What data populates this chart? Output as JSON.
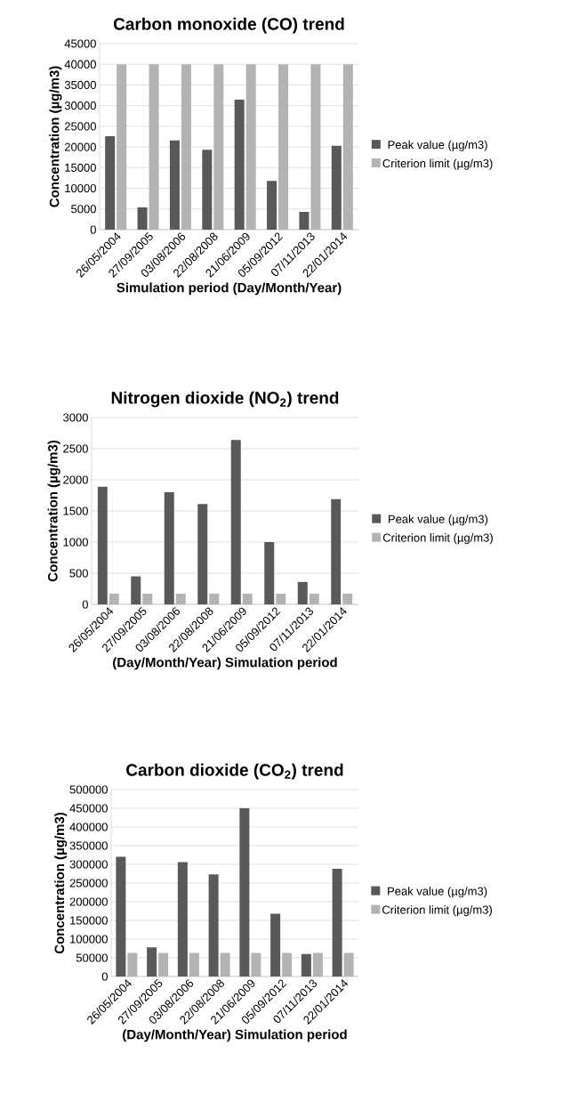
{
  "chart_data": [
    {
      "type": "bar",
      "title": "Carbon monoxide (CO) trend",
      "xlabel": "Simulation period (Day/Month/Year)",
      "ylabel": "Concentration (µg/m3)",
      "categories": [
        "26/05/2004",
        "27/09/2005",
        "03/08/2006",
        "22/08/2008",
        "21/06/2009",
        "05/09/2012",
        "07/11/2013",
        "22/01/2014"
      ],
      "series": [
        {
          "name": "Peak value (µg/m3)",
          "color": "#595959",
          "values": [
            22600,
            5400,
            21600,
            19300,
            31500,
            11800,
            4300,
            20300
          ]
        },
        {
          "name": "Criterion limit (µg/m3)",
          "color": "#b3b3b3",
          "values": [
            40000,
            40000,
            40000,
            40000,
            40000,
            40000,
            40000,
            40000
          ]
        }
      ],
      "ylim": [
        0,
        45000
      ],
      "yticks": [
        0,
        5000,
        10000,
        15000,
        20000,
        25000,
        30000,
        35000,
        40000,
        45000
      ],
      "grid": "y",
      "legend": "right"
    },
    {
      "type": "bar",
      "title": "Nitrogen dioxide (NO$_{2}$) trend",
      "xlabel": "(Day/Month/Year) Simulation period",
      "ylabel": "Concentration (µg/m3)",
      "categories": [
        "26/05/2004",
        "27/09/2005",
        "03/08/2006",
        "22/08/2008",
        "21/06/2009",
        "05/09/2012",
        "07/11/2013",
        "22/01/2014"
      ],
      "series": [
        {
          "name": "Peak value (µg/m3)",
          "color": "#595959",
          "values": [
            1890,
            450,
            1800,
            1610,
            2640,
            1000,
            360,
            1690
          ]
        },
        {
          "name": "Criterion limit (µg/m3)",
          "color": "#b3b3b3",
          "values": [
            175,
            175,
            175,
            175,
            175,
            175,
            175,
            175
          ]
        }
      ],
      "ylim": [
        0,
        3000
      ],
      "yticks": [
        0,
        500,
        1000,
        1500,
        2000,
        2500,
        3000
      ],
      "grid": "y",
      "legend": "right"
    },
    {
      "type": "bar",
      "title": "Carbon dioxide (CO$_{2}$) trend",
      "xlabel": "(Day/Month/Year) Simulation period",
      "ylabel": "Concentration (µg/m3)",
      "categories": [
        "26/05/2004",
        "27/09/2005",
        "03/08/2006",
        "22/08/2008",
        "21/06/2009",
        "05/09/2012",
        "07/11/2013",
        "22/01/2014"
      ],
      "series": [
        {
          "name": "Peak value (µg/m3)",
          "color": "#595959",
          "values": [
            320000,
            78000,
            306000,
            273000,
            450000,
            168000,
            60000,
            288000
          ]
        },
        {
          "name": "Criterion limit (µg/m3)",
          "color": "#b3b3b3",
          "values": [
            63000,
            63000,
            63000,
            63000,
            63000,
            63000,
            63000,
            63000
          ]
        }
      ],
      "ylim": [
        0,
        500000
      ],
      "yticks": [
        0,
        50000,
        100000,
        150000,
        200000,
        250000,
        300000,
        350000,
        400000,
        450000,
        500000
      ],
      "grid": "y",
      "legend": "right"
    }
  ]
}
